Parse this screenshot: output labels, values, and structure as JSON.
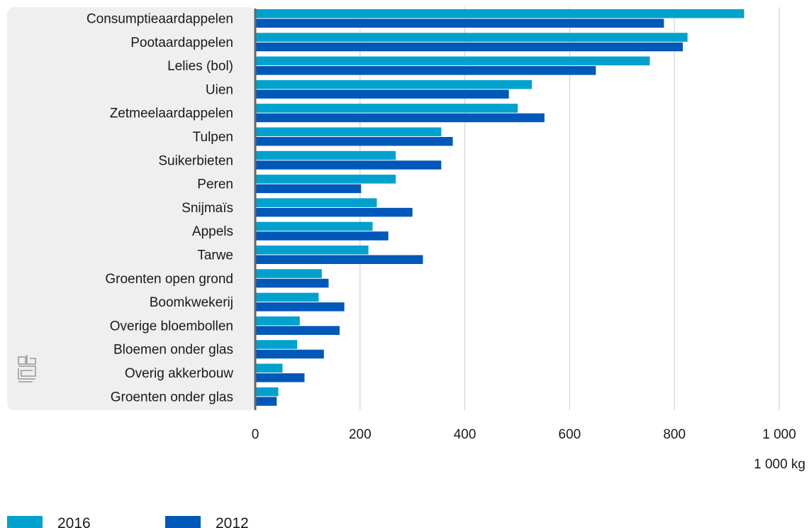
{
  "chart_data": {
    "type": "bar",
    "orientation": "horizontal",
    "categories": [
      "Consumptieaardappelen",
      "Pootaardappelen",
      "Lelies (bol)",
      "Uien",
      "Zetmeelaardappelen",
      "Tulpen",
      "Suikerbieten",
      "Peren",
      "Snijmaïs",
      "Appels",
      "Tarwe",
      "Groenten open grond",
      "Boomkwekerij",
      "Overige bloembollen",
      "Bloemen onder glas",
      "Overig akkerbouw",
      "Groenten onder glas"
    ],
    "series": [
      {
        "name": "2016",
        "color": "#00a1cd",
        "values": [
          933,
          825,
          753,
          528,
          501,
          355,
          268,
          268,
          232,
          224,
          216,
          127,
          121,
          85,
          80,
          52,
          44
        ]
      },
      {
        "name": "2012",
        "color": "#0058b8",
        "values": [
          780,
          816,
          650,
          484,
          552,
          377,
          355,
          202,
          300,
          254,
          320,
          140,
          170,
          161,
          131,
          94,
          41
        ]
      }
    ],
    "xlim": [
      0,
      1000
    ],
    "xticks": [
      0,
      200,
      400,
      600,
      800,
      1000
    ],
    "xtick_labels": [
      "0",
      "200",
      "400",
      "600",
      "800",
      "1 000"
    ],
    "unit_label": "1 000 kg",
    "grid": "vertical",
    "legend_position": "bottom-left"
  }
}
